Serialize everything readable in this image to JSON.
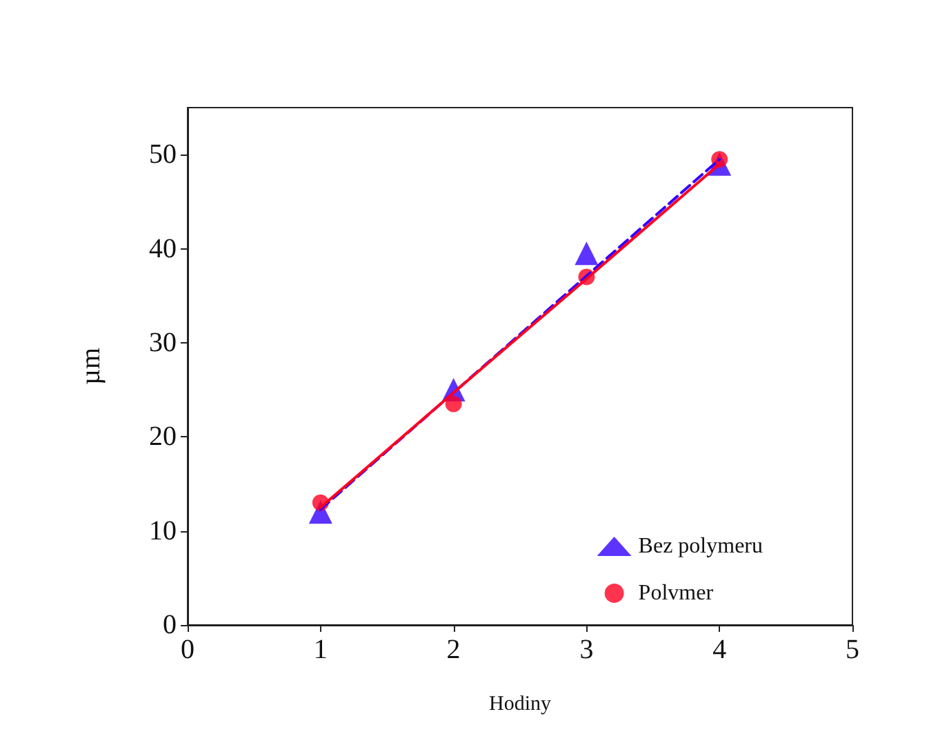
{
  "chart_data": {
    "type": "scatter",
    "xlabel": "Hodiny",
    "ylabel": "µm",
    "x": [
      1,
      2,
      3,
      4
    ],
    "xlim": [
      0,
      5
    ],
    "xticks": [
      0,
      1,
      2,
      3,
      4,
      5
    ],
    "ylim": [
      0,
      55
    ],
    "yticks": [
      0,
      10,
      20,
      30,
      40,
      50
    ],
    "grid": false,
    "legend": "bottom right",
    "series": [
      {
        "name": "Bez polymeru",
        "color": "#3300ff",
        "marker": "triangle",
        "values": [
          12,
          25,
          39.5,
          49
        ]
      },
      {
        "name": "Polvmer",
        "color": "#ff0022",
        "marker": "circle",
        "values": [
          13,
          23.5,
          37,
          49.5
        ]
      },
      {
        "type": "line",
        "color": "#3300ff",
        "line_style": "dashed",
        "marker": "none",
        "values": [
          12.3,
          24.7,
          37.1,
          49.5
        ]
      },
      {
        "type": "line",
        "color": "#ff0022",
        "line_style": "solid",
        "marker": "none",
        "values": [
          12.5,
          24.7,
          36.8,
          49
        ]
      }
    ]
  }
}
